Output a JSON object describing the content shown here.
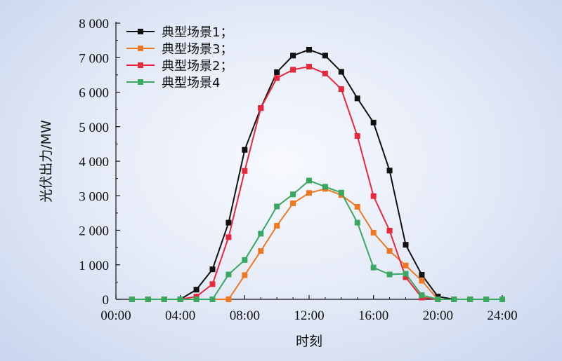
{
  "chart_data": {
    "type": "line",
    "xlabel": "时刻",
    "ylabel": "光伏出力/MW",
    "xlim": [
      0,
      24
    ],
    "ylim": [
      0,
      8000
    ],
    "x_ticks": [
      {
        "value": 0,
        "label": "00:00"
      },
      {
        "value": 4,
        "label": "04:00"
      },
      {
        "value": 8,
        "label": "08:00"
      },
      {
        "value": 12,
        "label": "12:00"
      },
      {
        "value": 16,
        "label": "16:00"
      },
      {
        "value": 20,
        "label": "20:00"
      },
      {
        "value": 24,
        "label": "24:00"
      }
    ],
    "y_ticks": [
      {
        "value": 0,
        "label": "0"
      },
      {
        "value": 1000,
        "label": "1 000"
      },
      {
        "value": 2000,
        "label": "2 000"
      },
      {
        "value": 3000,
        "label": "3 000"
      },
      {
        "value": 4000,
        "label": "4 000"
      },
      {
        "value": 5000,
        "label": "5 000"
      },
      {
        "value": 6000,
        "label": "6 000"
      },
      {
        "value": 7000,
        "label": "7 000"
      },
      {
        "value": 8000,
        "label": "8 000"
      }
    ],
    "legend_position": "top-left",
    "x": [
      1,
      2,
      3,
      4,
      5,
      6,
      7,
      8,
      9,
      10,
      11,
      12,
      13,
      14,
      15,
      16,
      17,
      18,
      19,
      20,
      21,
      22,
      23,
      24
    ],
    "series": [
      {
        "name": "典型场景1；",
        "color": "#111111",
        "values": [
          0,
          0,
          0,
          0,
          280,
          870,
          2220,
          4330,
          5540,
          6580,
          7060,
          7230,
          7060,
          6590,
          5820,
          5120,
          3730,
          1580,
          710,
          80,
          0,
          0,
          0,
          0
        ]
      },
      {
        "name": "典型场景3；",
        "color": "#f07820",
        "values": [
          0,
          0,
          0,
          0,
          0,
          0,
          0,
          700,
          1400,
          2130,
          2780,
          3080,
          3200,
          3020,
          2680,
          1930,
          1400,
          980,
          540,
          0,
          0,
          0,
          0,
          0
        ]
      },
      {
        "name": "典型场景2；",
        "color": "#e8283c",
        "values": [
          0,
          0,
          0,
          0,
          80,
          440,
          1800,
          3720,
          5540,
          6410,
          6650,
          6740,
          6540,
          6090,
          4730,
          2990,
          1990,
          640,
          50,
          0,
          0,
          0,
          0,
          0
        ]
      },
      {
        "name": "典型场景4",
        "color": "#3aa860",
        "values": [
          0,
          0,
          0,
          0,
          0,
          0,
          720,
          1140,
          1900,
          2690,
          3040,
          3440,
          3260,
          3090,
          2220,
          920,
          720,
          740,
          120,
          0,
          0,
          0,
          0,
          0
        ]
      }
    ]
  }
}
